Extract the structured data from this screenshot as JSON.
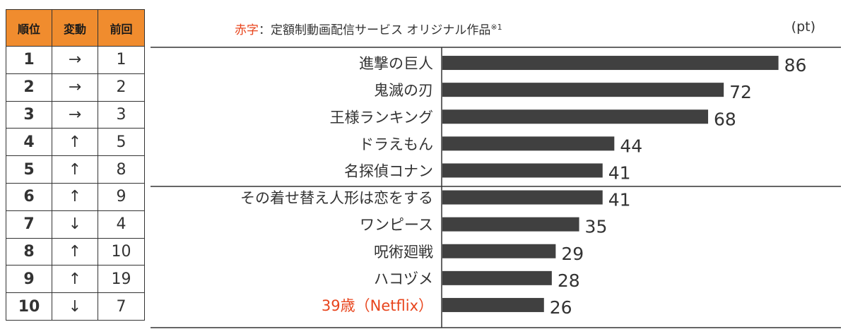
{
  "table": {
    "headers": [
      "順位",
      "変動",
      "前回"
    ],
    "rows": [
      {
        "rank": "1",
        "change": "→",
        "prev": "1"
      },
      {
        "rank": "2",
        "change": "→",
        "prev": "2"
      },
      {
        "rank": "3",
        "change": "→",
        "prev": "3"
      },
      {
        "rank": "4",
        "change": "↑",
        "prev": "5"
      },
      {
        "rank": "5",
        "change": "↑",
        "prev": "8"
      },
      {
        "rank": "6",
        "change": "↑",
        "prev": "9"
      },
      {
        "rank": "7",
        "change": "↓",
        "prev": "4"
      },
      {
        "rank": "8",
        "change": "↑",
        "prev": "10"
      },
      {
        "rank": "9",
        "change": "↑",
        "prev": "19"
      },
      {
        "rank": "10",
        "change": "↓",
        "prev": "7"
      }
    ]
  },
  "legend": {
    "red_label": "赤字",
    "text": "：定額制動画配信サービス オリジナル作品",
    "footnote": "※1"
  },
  "unit": "(pt)",
  "colors": {
    "header_bg": "#f08c2e",
    "up_arrow": "#e8451d",
    "highlight_text": "#e8451d",
    "bar": "#404040"
  },
  "chart_data": {
    "type": "bar",
    "orientation": "horizontal",
    "categories": [
      "進撃の巨人",
      "鬼滅の刃",
      "王様ランキング",
      "ドラえもん",
      "名探偵コナン",
      "その着せ替え人形は恋をする",
      "ワンピース",
      "呪術廻戦",
      "ハコヅメ",
      "39歳（Netflix）"
    ],
    "values": [
      86,
      72,
      68,
      44,
      41,
      41,
      35,
      29,
      28,
      26
    ],
    "highlighted": [
      false,
      false,
      false,
      false,
      false,
      false,
      false,
      false,
      false,
      true
    ],
    "ylabel": "(pt)",
    "xlim": [
      0,
      100
    ]
  }
}
